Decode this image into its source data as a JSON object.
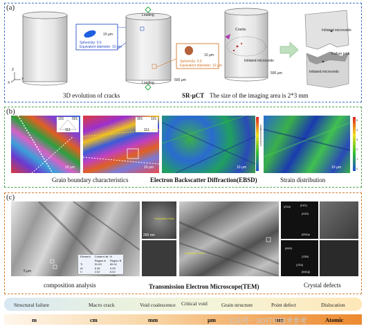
{
  "panel_a": {
    "label": "(a)",
    "loading_top": "Loading",
    "loading_bottom": "Loading",
    "caption_left": "3D evolution of cracks",
    "caption_mid": "SR-μCT",
    "caption_right": "The size of the imaging area is 2*3 mm",
    "callout1": {
      "scale": "10 μm",
      "sphericity": "Sphericity: 0.6",
      "diameter": "Equivalent diameter: 10 μm"
    },
    "callout2": {
      "scale": "10 μm",
      "sphericity": "Sphericity: 0.6",
      "diameter": "Equivalent diameter: 10 μm"
    },
    "scale_500_a": "500 μm",
    "scale_500_b": "500 μm",
    "cracks": "Cracks",
    "initiated_microvoids": "Initiated microvoids",
    "initiated_microvoids_2": "Initiated microvoids",
    "failure_path": "Failure path",
    "initiated_microvoids_3": "Initiated microvoids",
    "axis_x": "X",
    "axis_y": "Y",
    "axis_z": "Z"
  },
  "panel_b": {
    "label": "(b)",
    "caption_left": "Grain boundary characteristics",
    "caption_mid": "Electron Backscatter Diffraction(EBSD)",
    "caption_right": "Strain distribution",
    "scale1": "10 μm",
    "scale2": "10 μm",
    "scale3": "10 μm",
    "scale4": "10 μm",
    "ipf1": [
      "101",
      "001",
      "111"
    ],
    "ipf2": [
      "001",
      "101",
      "111"
    ],
    "colorbar_label": "Local misorientation",
    "colorbar_ticks": [
      "5",
      "4",
      "3",
      "2",
      "1",
      "0"
    ]
  },
  "panel_c": {
    "label": "(c)",
    "caption_left": "composition analysis",
    "caption_mid": "Transmission Electron Microscope(TEM)",
    "caption_right": "Crystal defects",
    "scale_main": "5 μm",
    "scale_small1": "200 nm",
    "dislocation1": "Dislocation lines",
    "dislocation2": "Dislocation lines",
    "table": {
      "header": [
        "Element",
        "Content /at. %",
        ""
      ],
      "sub": [
        "",
        "Region A",
        "Region B"
      ],
      "rows": [
        [
          "Ti",
          "91.63",
          "89.41"
        ],
        [
          "Al",
          "6.45",
          "4.99"
        ],
        [
          "V",
          "2.02",
          "6.02"
        ]
      ]
    },
    "diff_labels": [
      "(2̄1̄10)",
      "(011̄1)",
      "(011̄0)",
      "(0002)",
      "(1̄1̄00)",
      "(1̄1̄10)"
    ],
    "zone1": "[0001]α",
    "zone2": "[0001]β"
  },
  "scale_bar": {
    "top": [
      "Structural failure",
      "Macro crack",
      "Void coalescence",
      "Critical void",
      "Grain structure",
      "Point defect",
      "Dislocation"
    ],
    "units": [
      "m",
      "cm",
      "mm",
      "μm",
      "nm",
      "Atomic"
    ]
  },
  "watermark": "公众号 · 3D打印技术参考",
  "colors": {
    "panel_a_border": "#3b6fc2",
    "panel_b_border": "#4ca34a",
    "panel_c_border": "#d2782d",
    "callout1": "#2c50c8",
    "callout2": "#d2782d",
    "arrow": "#8cc08a"
  }
}
